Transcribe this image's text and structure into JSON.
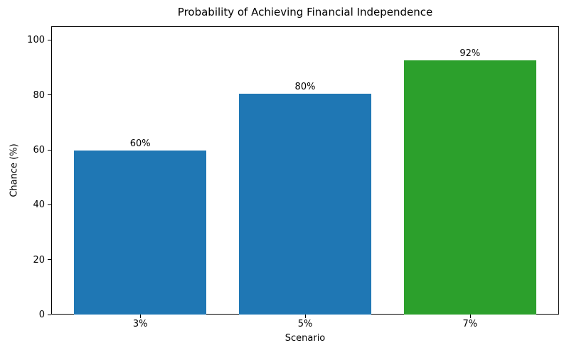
{
  "chart_data": {
    "type": "bar",
    "title": "Probability of Achieving Financial Independence",
    "xlabel": "Scenario",
    "ylabel": "Chance (%)",
    "categories": [
      "3%",
      "5%",
      "7%"
    ],
    "values": [
      59.8,
      80.5,
      92.5
    ],
    "bar_labels": [
      "60%",
      "80%",
      "92%"
    ],
    "bar_colors": [
      "#1f77b4",
      "#1f77b4",
      "#2ca02c"
    ],
    "ylim": [
      0,
      105
    ],
    "yticks": [
      0,
      20,
      40,
      60,
      80,
      100
    ],
    "ytick_labels": [
      "0",
      "20",
      "40",
      "60",
      "80",
      "100"
    ],
    "grid": false,
    "legend_position": "none",
    "background_color": "#ffffff",
    "axis_color": "#000000",
    "text_color": "#000000"
  }
}
